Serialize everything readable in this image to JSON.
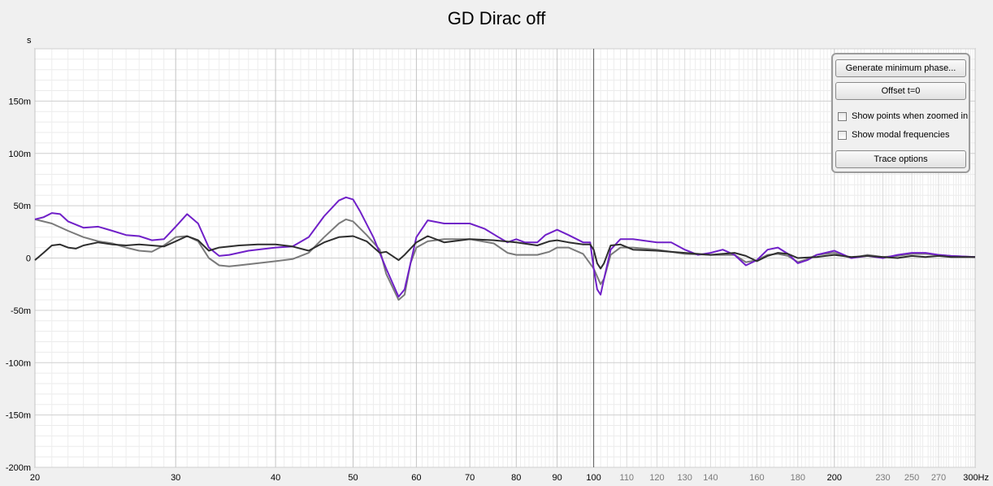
{
  "chart_data": {
    "type": "line",
    "title": "GD Dirac off",
    "ylabel": "s",
    "xscale": "log",
    "xlim": [
      20,
      300
    ],
    "ylim": [
      -0.2,
      0.2
    ],
    "y_ticks": [
      {
        "v": 0.15,
        "label": "150m"
      },
      {
        "v": 0.1,
        "label": "100m"
      },
      {
        "v": 0.05,
        "label": "50m"
      },
      {
        "v": 0,
        "label": "0"
      },
      {
        "v": -0.05,
        "label": "-50m"
      },
      {
        "v": -0.1,
        "label": "-100m"
      },
      {
        "v": -0.15,
        "label": "-150m"
      },
      {
        "v": -0.2,
        "label": "-200m"
      }
    ],
    "x_ticks_major": [
      {
        "v": 20,
        "label": "20"
      },
      {
        "v": 30,
        "label": "30"
      },
      {
        "v": 40,
        "label": "40"
      },
      {
        "v": 50,
        "label": "50"
      },
      {
        "v": 60,
        "label": "60"
      },
      {
        "v": 70,
        "label": "70"
      },
      {
        "v": 80,
        "label": "80"
      },
      {
        "v": 90,
        "label": "90"
      },
      {
        "v": 100,
        "label": "100"
      },
      {
        "v": 200,
        "label": "200"
      },
      {
        "v": 300,
        "label": "300Hz"
      }
    ],
    "x_ticks_minor": [
      {
        "v": 110,
        "label": "110"
      },
      {
        "v": 120,
        "label": "120"
      },
      {
        "v": 130,
        "label": "130"
      },
      {
        "v": 140,
        "label": "140"
      },
      {
        "v": 160,
        "label": "160"
      },
      {
        "v": 180,
        "label": "180"
      },
      {
        "v": 230,
        "label": "230"
      },
      {
        "v": 250,
        "label": "250"
      },
      {
        "v": 270,
        "label": "270"
      }
    ],
    "series": [
      {
        "color": "#7a7a7a",
        "points": [
          [
            20,
            0.037
          ],
          [
            21,
            0.033
          ],
          [
            22,
            0.026
          ],
          [
            23,
            0.02
          ],
          [
            24,
            0.016
          ],
          [
            25,
            0.014
          ],
          [
            26,
            0.01
          ],
          [
            27,
            0.007
          ],
          [
            28,
            0.006
          ],
          [
            29,
            0.012
          ],
          [
            30,
            0.02
          ],
          [
            31,
            0.021
          ],
          [
            32,
            0.016
          ],
          [
            33,
            0.0
          ],
          [
            34,
            -0.007
          ],
          [
            35,
            -0.008
          ],
          [
            36,
            -0.007
          ],
          [
            38,
            -0.005
          ],
          [
            40,
            -0.003
          ],
          [
            42,
            -0.001
          ],
          [
            44,
            0.005
          ],
          [
            46,
            0.02
          ],
          [
            48,
            0.033
          ],
          [
            49,
            0.037
          ],
          [
            50,
            0.035
          ],
          [
            52,
            0.022
          ],
          [
            54,
            0.008
          ],
          [
            55,
            -0.015
          ],
          [
            57,
            -0.04
          ],
          [
            58,
            -0.035
          ],
          [
            59,
            -0.005
          ],
          [
            60,
            0.01
          ],
          [
            62,
            0.016
          ],
          [
            65,
            0.018
          ],
          [
            70,
            0.018
          ],
          [
            75,
            0.014
          ],
          [
            78,
            0.005
          ],
          [
            80,
            0.003
          ],
          [
            85,
            0.003
          ],
          [
            88,
            0.006
          ],
          [
            90,
            0.01
          ],
          [
            93,
            0.01
          ],
          [
            97,
            0.004
          ],
          [
            100,
            -0.01
          ],
          [
            102,
            -0.025
          ],
          [
            103,
            -0.02
          ],
          [
            105,
            0.003
          ],
          [
            108,
            0.01
          ],
          [
            112,
            0.01
          ],
          [
            120,
            0.008
          ],
          [
            130,
            0.004
          ],
          [
            140,
            0.003
          ],
          [
            150,
            0.003
          ],
          [
            155,
            -0.004
          ],
          [
            160,
            -0.002
          ],
          [
            165,
            0.003
          ],
          [
            170,
            0.004
          ],
          [
            175,
            0.002
          ],
          [
            180,
            -0.004
          ],
          [
            185,
            -0.001
          ],
          [
            190,
            0.003
          ],
          [
            200,
            0.005
          ],
          [
            210,
            0.0
          ],
          [
            220,
            0.003
          ],
          [
            230,
            0.001
          ],
          [
            240,
            0.002
          ],
          [
            250,
            0.004
          ],
          [
            260,
            0.004
          ],
          [
            270,
            0.003
          ],
          [
            280,
            0.002
          ],
          [
            300,
            0.001
          ]
        ]
      },
      {
        "color": "#7020c8",
        "points": [
          [
            20,
            0.037
          ],
          [
            20.5,
            0.039
          ],
          [
            21,
            0.043
          ],
          [
            21.5,
            0.042
          ],
          [
            22,
            0.035
          ],
          [
            23,
            0.029
          ],
          [
            24,
            0.03
          ],
          [
            25,
            0.026
          ],
          [
            26,
            0.022
          ],
          [
            27,
            0.021
          ],
          [
            28,
            0.017
          ],
          [
            29,
            0.018
          ],
          [
            30,
            0.03
          ],
          [
            31,
            0.042
          ],
          [
            32,
            0.033
          ],
          [
            33,
            0.01
          ],
          [
            34,
            0.002
          ],
          [
            35,
            0.003
          ],
          [
            37,
            0.007
          ],
          [
            40,
            0.01
          ],
          [
            42,
            0.011
          ],
          [
            44,
            0.02
          ],
          [
            46,
            0.04
          ],
          [
            48,
            0.055
          ],
          [
            49,
            0.058
          ],
          [
            50,
            0.056
          ],
          [
            51,
            0.045
          ],
          [
            53,
            0.02
          ],
          [
            55,
            -0.01
          ],
          [
            57,
            -0.037
          ],
          [
            58,
            -0.03
          ],
          [
            59,
            -0.005
          ],
          [
            60,
            0.02
          ],
          [
            62,
            0.036
          ],
          [
            65,
            0.033
          ],
          [
            70,
            0.033
          ],
          [
            73,
            0.028
          ],
          [
            76,
            0.02
          ],
          [
            78,
            0.015
          ],
          [
            80,
            0.018
          ],
          [
            82,
            0.015
          ],
          [
            85,
            0.015
          ],
          [
            87,
            0.022
          ],
          [
            90,
            0.027
          ],
          [
            93,
            0.022
          ],
          [
            97,
            0.015
          ],
          [
            99,
            0.015
          ],
          [
            100,
            -0.01
          ],
          [
            101,
            -0.03
          ],
          [
            102,
            -0.035
          ],
          [
            103,
            -0.02
          ],
          [
            105,
            0.008
          ],
          [
            108,
            0.018
          ],
          [
            112,
            0.018
          ],
          [
            120,
            0.015
          ],
          [
            125,
            0.015
          ],
          [
            130,
            0.008
          ],
          [
            135,
            0.003
          ],
          [
            140,
            0.005
          ],
          [
            145,
            0.008
          ],
          [
            150,
            0.003
          ],
          [
            155,
            -0.007
          ],
          [
            160,
            -0.002
          ],
          [
            165,
            0.008
          ],
          [
            170,
            0.01
          ],
          [
            175,
            0.004
          ],
          [
            180,
            -0.005
          ],
          [
            185,
            -0.002
          ],
          [
            190,
            0.003
          ],
          [
            200,
            0.007
          ],
          [
            210,
            0.0
          ],
          [
            220,
            0.002
          ],
          [
            230,
            0.0
          ],
          [
            240,
            0.003
          ],
          [
            250,
            0.005
          ],
          [
            260,
            0.005
          ],
          [
            270,
            0.003
          ],
          [
            280,
            0.002
          ],
          [
            300,
            0.001
          ]
        ]
      },
      {
        "color": "#2e2e2e",
        "points": [
          [
            20,
            -0.002
          ],
          [
            20.5,
            0.005
          ],
          [
            21,
            0.012
          ],
          [
            21.5,
            0.013
          ],
          [
            22,
            0.01
          ],
          [
            22.5,
            0.009
          ],
          [
            23,
            0.012
          ],
          [
            24,
            0.015
          ],
          [
            25,
            0.013
          ],
          [
            26,
            0.012
          ],
          [
            27,
            0.013
          ],
          [
            28,
            0.012
          ],
          [
            29,
            0.011
          ],
          [
            30,
            0.016
          ],
          [
            31,
            0.021
          ],
          [
            32,
            0.017
          ],
          [
            33,
            0.007
          ],
          [
            34,
            0.01
          ],
          [
            36,
            0.012
          ],
          [
            38,
            0.013
          ],
          [
            40,
            0.013
          ],
          [
            42,
            0.011
          ],
          [
            44,
            0.007
          ],
          [
            46,
            0.015
          ],
          [
            48,
            0.02
          ],
          [
            50,
            0.021
          ],
          [
            52,
            0.016
          ],
          [
            54,
            0.005
          ],
          [
            55,
            0.006
          ],
          [
            56,
            0.002
          ],
          [
            57,
            -0.002
          ],
          [
            58,
            0.003
          ],
          [
            60,
            0.015
          ],
          [
            62,
            0.021
          ],
          [
            65,
            0.015
          ],
          [
            70,
            0.018
          ],
          [
            75,
            0.017
          ],
          [
            80,
            0.015
          ],
          [
            85,
            0.012
          ],
          [
            88,
            0.016
          ],
          [
            90,
            0.017
          ],
          [
            93,
            0.015
          ],
          [
            97,
            0.013
          ],
          [
            99,
            0.013
          ],
          [
            100,
            0.008
          ],
          [
            101,
            -0.005
          ],
          [
            102,
            -0.01
          ],
          [
            103,
            -0.005
          ],
          [
            105,
            0.012
          ],
          [
            108,
            0.013
          ],
          [
            112,
            0.008
          ],
          [
            120,
            0.007
          ],
          [
            130,
            0.005
          ],
          [
            140,
            0.003
          ],
          [
            150,
            0.005
          ],
          [
            155,
            0.002
          ],
          [
            160,
            -0.003
          ],
          [
            165,
            0.002
          ],
          [
            170,
            0.005
          ],
          [
            175,
            0.004
          ],
          [
            180,
            0.0
          ],
          [
            190,
            0.001
          ],
          [
            200,
            0.003
          ],
          [
            210,
            0.001
          ],
          [
            220,
            0.002
          ],
          [
            230,
            0.001
          ],
          [
            240,
            0.0
          ],
          [
            250,
            0.002
          ],
          [
            260,
            0.001
          ],
          [
            270,
            0.002
          ],
          [
            280,
            0.001
          ],
          [
            300,
            0.001
          ]
        ]
      }
    ]
  },
  "panel": {
    "generate_min_phase": "Generate minimum phase...",
    "offset_t0": "Offset t=0",
    "show_points": "Show points when zoomed in",
    "show_modal": "Show modal frequencies",
    "trace_options": "Trace options"
  }
}
